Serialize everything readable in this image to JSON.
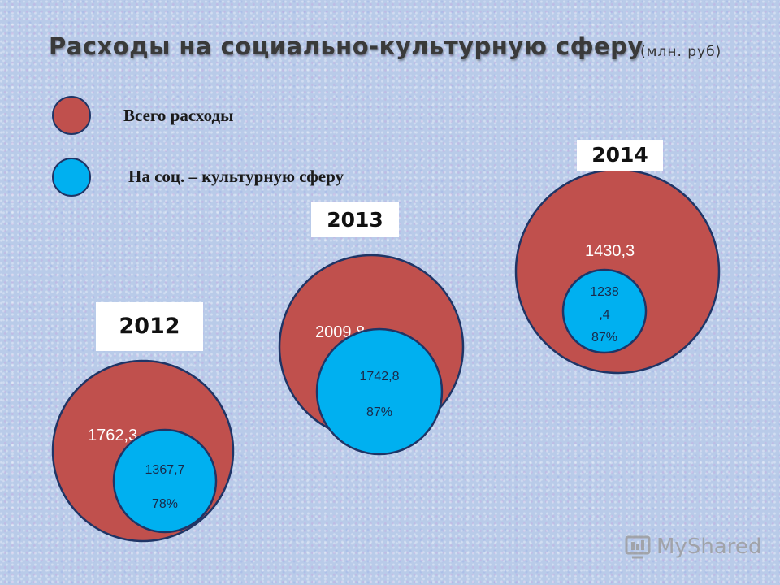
{
  "title": "Расходы на социально-культурную сферу",
  "unit": "(млн. руб)",
  "colors": {
    "total": "#c0504d",
    "social": "#00b0f0",
    "outline": "#1f3566"
  },
  "legend": [
    {
      "label": "Всего расходы",
      "color": "#c0504d"
    },
    {
      "label": "На соц. – культурную сферу",
      "color": "#00b0f0"
    }
  ],
  "chart_data": {
    "type": "bubble",
    "title": "Расходы на социально-культурную сферу",
    "unit": "млн. руб",
    "series": [
      {
        "name": "Всего расходы",
        "values": [
          1762.3,
          2009.8,
          1430.3
        ]
      },
      {
        "name": "На соц. – культурную сферу",
        "values": [
          1367.7,
          1742.8,
          1238.4
        ]
      }
    ],
    "categories": [
      "2012",
      "2013",
      "2014"
    ],
    "labels": {
      "total": [
        "1762,3",
        "2009,8",
        "1430,3"
      ],
      "social": [
        [
          "1367,7"
        ],
        [
          "1742,8"
        ],
        [
          "1238",
          ",4"
        ]
      ],
      "percent": [
        "78%",
        "87%",
        "87%"
      ]
    }
  },
  "watermark": "MyShared"
}
